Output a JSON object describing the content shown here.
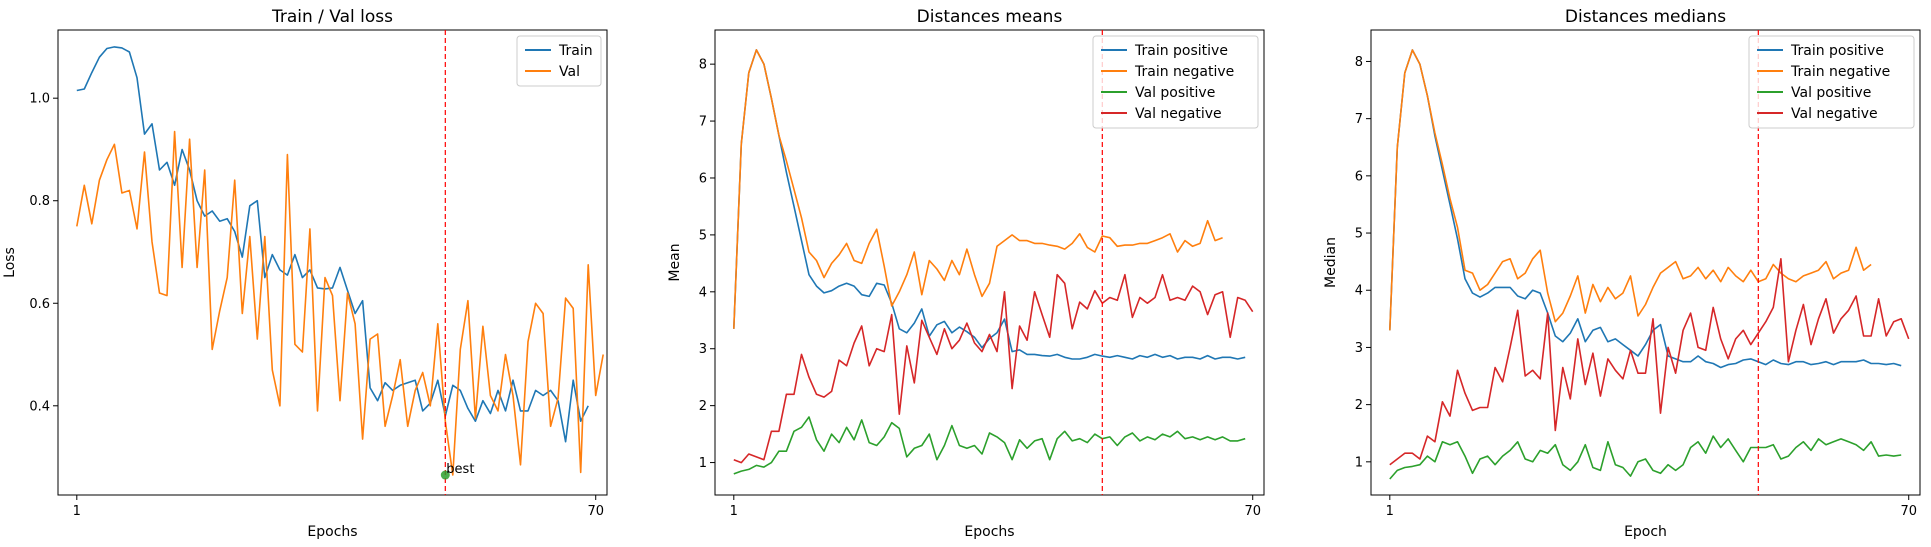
{
  "chart_data": [
    {
      "type": "line",
      "title": "Train / Val loss",
      "xlabel": "Epochs",
      "ylabel": "Loss",
      "xlim": [
        -1.5,
        71.5
      ],
      "ylim": [
        0.226,
        1.133
      ],
      "xticks": [
        1,
        70
      ],
      "yticks": [
        0.4,
        0.6,
        0.8,
        1.0
      ],
      "ytick_decimals": 1,
      "best_epoch": 50,
      "best_value": 0.265,
      "best_label": "best",
      "legend_position": "top-right",
      "grid": false,
      "series": [
        {
          "name": "Train",
          "color": "#1f77b4",
          "values": [
            1.015,
            1.018,
            1.05,
            1.08,
            1.097,
            1.1,
            1.098,
            1.09,
            1.04,
            0.93,
            0.95,
            0.86,
            0.875,
            0.83,
            0.9,
            0.86,
            0.8,
            0.77,
            0.78,
            0.76,
            0.765,
            0.74,
            0.69,
            0.79,
            0.8,
            0.65,
            0.695,
            0.665,
            0.655,
            0.695,
            0.65,
            0.665,
            0.63,
            0.628,
            0.63,
            0.67,
            0.625,
            0.58,
            0.605,
            0.435,
            0.41,
            0.445,
            0.43,
            0.44,
            0.445,
            0.45,
            0.39,
            0.405,
            0.45,
            0.38,
            0.44,
            0.43,
            0.395,
            0.37,
            0.41,
            0.385,
            0.43,
            0.39,
            0.45,
            0.39,
            0.39,
            0.43,
            0.42,
            0.43,
            0.41,
            0.33,
            0.45,
            0.37,
            0.4
          ]
        },
        {
          "name": "Val",
          "color": "#ff7f0e",
          "values": [
            0.75,
            0.83,
            0.755,
            0.84,
            0.88,
            0.91,
            0.815,
            0.82,
            0.745,
            0.895,
            0.72,
            0.62,
            0.615,
            0.935,
            0.67,
            0.92,
            0.67,
            0.86,
            0.51,
            0.585,
            0.65,
            0.84,
            0.58,
            0.73,
            0.53,
            0.73,
            0.47,
            0.4,
            0.89,
            0.52,
            0.505,
            0.745,
            0.39,
            0.65,
            0.615,
            0.41,
            0.62,
            0.56,
            0.335,
            0.53,
            0.54,
            0.36,
            0.42,
            0.49,
            0.36,
            0.43,
            0.465,
            0.4,
            0.56,
            0.37,
            0.265,
            0.51,
            0.605,
            0.375,
            0.555,
            0.42,
            0.39,
            0.5,
            0.42,
            0.285,
            0.525,
            0.6,
            0.58,
            0.36,
            0.415,
            0.61,
            0.59,
            0.27,
            0.675,
            0.42,
            0.5
          ]
        }
      ]
    },
    {
      "type": "line",
      "title": "Distances means",
      "xlabel": "Epochs",
      "ylabel": "Mean",
      "xlim": [
        -1.5,
        71.5
      ],
      "ylim": [
        0.43,
        8.6
      ],
      "xticks": [
        1,
        70
      ],
      "yticks": [
        1,
        2,
        3,
        4,
        5,
        6,
        7,
        8
      ],
      "ytick_decimals": 0,
      "best_epoch": 50,
      "legend_position": "top-right",
      "grid": false,
      "series": [
        {
          "name": "Train positive",
          "color": "#1f77b4",
          "values": [
            3.35,
            6.6,
            7.85,
            8.25,
            8.0,
            7.4,
            6.75,
            6.1,
            5.5,
            4.9,
            4.3,
            4.1,
            3.98,
            4.02,
            4.1,
            4.15,
            4.1,
            3.95,
            3.92,
            4.15,
            4.12,
            3.8,
            3.35,
            3.28,
            3.45,
            3.7,
            3.22,
            3.42,
            3.48,
            3.28,
            3.38,
            3.3,
            3.2,
            3.02,
            3.18,
            3.28,
            3.52,
            2.95,
            2.98,
            2.9,
            2.9,
            2.88,
            2.87,
            2.9,
            2.85,
            2.82,
            2.82,
            2.85,
            2.9,
            2.87,
            2.85,
            2.88,
            2.85,
            2.82,
            2.88,
            2.85,
            2.9,
            2.85,
            2.88,
            2.82,
            2.85,
            2.85,
            2.82,
            2.88,
            2.82,
            2.85,
            2.85,
            2.82,
            2.85
          ]
        },
        {
          "name": "Train negative",
          "color": "#ff7f0e",
          "values": [
            3.35,
            6.6,
            7.85,
            8.25,
            8.0,
            7.4,
            6.75,
            6.3,
            5.8,
            5.3,
            4.7,
            4.55,
            4.25,
            4.5,
            4.65,
            4.85,
            4.55,
            4.5,
            4.85,
            5.1,
            4.45,
            3.75,
            4.0,
            4.3,
            4.7,
            3.95,
            4.55,
            4.4,
            4.2,
            4.55,
            4.3,
            4.75,
            4.3,
            3.92,
            4.15,
            4.8,
            4.9,
            5.0,
            4.9,
            4.9,
            4.85,
            4.85,
            4.82,
            4.8,
            4.75,
            4.85,
            5.02,
            4.78,
            4.7,
            4.98,
            4.95,
            4.8,
            4.82,
            4.82,
            4.85,
            4.85,
            4.9,
            4.95,
            5.02,
            4.7,
            4.9,
            4.8,
            4.85,
            5.25,
            4.9,
            4.95
          ]
        },
        {
          "name": "Val positive",
          "color": "#2ca02c",
          "values": [
            0.8,
            0.85,
            0.88,
            0.95,
            0.92,
            1.0,
            1.2,
            1.2,
            1.55,
            1.62,
            1.8,
            1.4,
            1.2,
            1.5,
            1.35,
            1.62,
            1.4,
            1.75,
            1.35,
            1.3,
            1.45,
            1.7,
            1.6,
            1.1,
            1.25,
            1.3,
            1.5,
            1.05,
            1.3,
            1.65,
            1.3,
            1.25,
            1.3,
            1.15,
            1.52,
            1.45,
            1.35,
            1.05,
            1.4,
            1.25,
            1.38,
            1.42,
            1.05,
            1.42,
            1.55,
            1.38,
            1.42,
            1.35,
            1.5,
            1.42,
            1.45,
            1.3,
            1.45,
            1.52,
            1.38,
            1.45,
            1.4,
            1.5,
            1.45,
            1.55,
            1.42,
            1.45,
            1.4,
            1.45,
            1.4,
            1.45,
            1.38,
            1.38,
            1.42
          ]
        },
        {
          "name": "Val negative",
          "color": "#d62728",
          "values": [
            1.05,
            1.0,
            1.15,
            1.1,
            1.05,
            1.55,
            1.55,
            2.2,
            2.2,
            2.9,
            2.5,
            2.2,
            2.15,
            2.25,
            2.8,
            2.7,
            3.1,
            3.4,
            2.7,
            3.0,
            2.95,
            3.6,
            1.85,
            3.05,
            2.4,
            3.5,
            3.2,
            2.9,
            3.35,
            3.0,
            3.15,
            3.45,
            3.1,
            2.95,
            3.25,
            2.95,
            4.0,
            2.3,
            3.4,
            3.15,
            4.0,
            3.6,
            3.2,
            4.3,
            4.15,
            3.35,
            3.82,
            3.7,
            4.02,
            3.8,
            3.9,
            3.85,
            4.3,
            3.55,
            3.9,
            3.8,
            3.9,
            4.3,
            3.85,
            3.9,
            3.85,
            4.1,
            4.0,
            3.6,
            3.95,
            4.0,
            3.2,
            3.9,
            3.85,
            3.65
          ]
        }
      ]
    },
    {
      "type": "line",
      "title": "Distances medians",
      "xlabel": "Epoch",
      "ylabel": "Median",
      "xlim": [
        -1.5,
        71.5
      ],
      "ylim": [
        0.42,
        8.55
      ],
      "xticks": [
        1,
        70
      ],
      "yticks": [
        1,
        2,
        3,
        4,
        5,
        6,
        7,
        8
      ],
      "ytick_decimals": 0,
      "best_epoch": 50,
      "legend_position": "top-right",
      "grid": false,
      "series": [
        {
          "name": "Train positive",
          "color": "#1f77b4",
          "values": [
            3.3,
            6.5,
            7.8,
            8.2,
            7.95,
            7.4,
            6.7,
            6.1,
            5.5,
            4.9,
            4.2,
            3.95,
            3.88,
            3.95,
            4.05,
            4.05,
            4.05,
            3.9,
            3.85,
            4.0,
            3.95,
            3.6,
            3.2,
            3.1,
            3.25,
            3.5,
            3.1,
            3.3,
            3.35,
            3.1,
            3.15,
            3.05,
            2.95,
            2.85,
            3.05,
            3.3,
            3.4,
            2.85,
            2.8,
            2.75,
            2.75,
            2.85,
            2.75,
            2.72,
            2.65,
            2.7,
            2.72,
            2.78,
            2.8,
            2.75,
            2.7,
            2.78,
            2.72,
            2.7,
            2.75,
            2.75,
            2.7,
            2.72,
            2.75,
            2.7,
            2.75,
            2.75,
            2.75,
            2.78,
            2.72,
            2.72,
            2.7,
            2.72,
            2.68
          ]
        },
        {
          "name": "Train negative",
          "color": "#ff7f0e",
          "values": [
            3.3,
            6.5,
            7.8,
            8.2,
            7.95,
            7.4,
            6.75,
            6.2,
            5.6,
            5.1,
            4.35,
            4.3,
            4.0,
            4.1,
            4.3,
            4.5,
            4.55,
            4.2,
            4.3,
            4.55,
            4.7,
            3.95,
            3.45,
            3.6,
            3.9,
            4.25,
            3.6,
            4.1,
            3.8,
            4.05,
            3.85,
            3.95,
            4.25,
            3.55,
            3.75,
            4.05,
            4.3,
            4.4,
            4.5,
            4.2,
            4.25,
            4.4,
            4.2,
            4.35,
            4.15,
            4.4,
            4.25,
            4.15,
            4.35,
            4.15,
            4.2,
            4.45,
            4.3,
            4.2,
            4.15,
            4.25,
            4.3,
            4.35,
            4.5,
            4.2,
            4.3,
            4.35,
            4.75,
            4.35,
            4.45
          ]
        },
        {
          "name": "Val positive",
          "color": "#2ca02c",
          "values": [
            0.7,
            0.85,
            0.9,
            0.92,
            0.95,
            1.1,
            1.0,
            1.35,
            1.3,
            1.35,
            1.1,
            0.8,
            1.05,
            1.1,
            0.95,
            1.1,
            1.2,
            1.35,
            1.05,
            1.0,
            1.2,
            1.15,
            1.3,
            0.95,
            0.85,
            1.0,
            1.3,
            0.9,
            0.85,
            1.35,
            0.95,
            0.9,
            0.75,
            1.0,
            1.05,
            0.85,
            0.8,
            0.95,
            0.85,
            0.95,
            1.25,
            1.35,
            1.15,
            1.45,
            1.25,
            1.4,
            1.2,
            1.0,
            1.25,
            1.25,
            1.25,
            1.3,
            1.05,
            1.1,
            1.25,
            1.35,
            1.2,
            1.4,
            1.3,
            1.35,
            1.4,
            1.35,
            1.3,
            1.2,
            1.35,
            1.1,
            1.12,
            1.1,
            1.12
          ]
        },
        {
          "name": "Val negative",
          "color": "#d62728",
          "values": [
            0.95,
            1.05,
            1.15,
            1.15,
            1.05,
            1.45,
            1.35,
            2.05,
            1.8,
            2.6,
            2.2,
            1.9,
            1.95,
            1.95,
            2.65,
            2.4,
            3.0,
            3.65,
            2.5,
            2.6,
            2.45,
            3.6,
            1.55,
            2.65,
            2.1,
            3.15,
            2.35,
            2.9,
            2.15,
            2.8,
            2.6,
            2.45,
            2.95,
            2.55,
            2.55,
            3.5,
            1.85,
            3.0,
            2.55,
            3.3,
            3.6,
            3.0,
            2.95,
            3.7,
            3.15,
            2.8,
            3.15,
            3.3,
            3.05,
            3.25,
            3.45,
            3.7,
            4.55,
            2.75,
            3.3,
            3.75,
            3.05,
            3.5,
            3.85,
            3.25,
            3.5,
            3.65,
            3.9,
            3.2,
            3.2,
            3.85,
            3.2,
            3.45,
            3.5,
            3.15
          ]
        }
      ]
    }
  ]
}
